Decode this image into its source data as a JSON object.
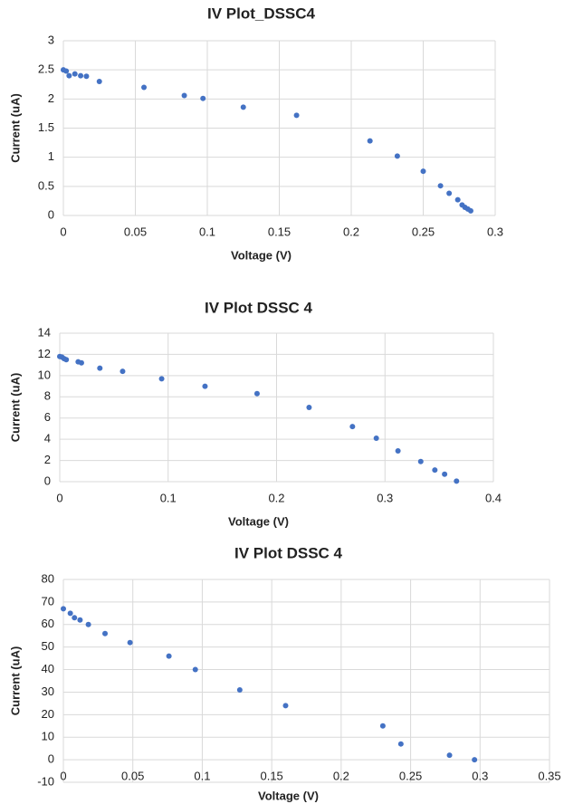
{
  "chart_data": [
    {
      "type": "scatter",
      "title": "IV Plot_DSSC4",
      "x_label": "Voltage (V)",
      "y_label": "Current (uA)",
      "series": [
        {
          "color": "#4472c4",
          "x": [
            0,
            0.002,
            0.004,
            0.008,
            0.012,
            0.016,
            0.025,
            0.056,
            0.084,
            0.097,
            0.125,
            0.162,
            0.213,
            0.232,
            0.25,
            0.262,
            0.268,
            0.274,
            0.277,
            0.279,
            0.281,
            0.283
          ],
          "values": [
            2.5,
            2.48,
            2.4,
            2.43,
            2.4,
            2.39,
            2.3,
            2.2,
            2.06,
            2.01,
            1.86,
            1.72,
            1.28,
            1.02,
            0.76,
            0.51,
            0.38,
            0.27,
            0.18,
            0.14,
            0.11,
            0.08
          ]
        }
      ],
      "xlim": [
        0,
        0.3
      ],
      "xticks": [
        0,
        0.05,
        0.1,
        0.15,
        0.2,
        0.25,
        0.3
      ],
      "ylim": [
        0,
        3
      ],
      "yticks": [
        0,
        0.5,
        1,
        1.5,
        2,
        2.5,
        3
      ],
      "grid": true
    },
    {
      "type": "scatter",
      "title": "IV Plot DSSC 4",
      "x_label": "Voltage (V)",
      "y_label": "Current (uA)",
      "series": [
        {
          "color": "#4472c4",
          "x": [
            0,
            0.002,
            0.004,
            0.006,
            0.017,
            0.02,
            0.037,
            0.058,
            0.094,
            0.134,
            0.182,
            0.23,
            0.27,
            0.292,
            0.312,
            0.333,
            0.346,
            0.355,
            0.366
          ],
          "values": [
            11.8,
            11.75,
            11.6,
            11.5,
            11.3,
            11.2,
            10.7,
            10.4,
            9.7,
            9.0,
            8.3,
            7.0,
            5.2,
            4.1,
            2.9,
            1.9,
            1.1,
            0.7,
            0.05
          ]
        }
      ],
      "xlim": [
        0,
        0.4
      ],
      "xticks": [
        0,
        0.1,
        0.2,
        0.3,
        0.4
      ],
      "ylim": [
        0,
        14
      ],
      "yticks": [
        0,
        2,
        4,
        6,
        8,
        10,
        12,
        14
      ],
      "grid": true
    },
    {
      "type": "scatter",
      "title": "IV Plot DSSC 4",
      "x_label": "Voltage (V)",
      "y_label": "Current (uA)",
      "series": [
        {
          "color": "#4472c4",
          "x": [
            0,
            0.005,
            0.008,
            0.012,
            0.018,
            0.03,
            0.048,
            0.076,
            0.095,
            0.127,
            0.16,
            0.23,
            0.243,
            0.278,
            0.296
          ],
          "values": [
            67,
            65,
            63,
            62,
            60,
            56,
            52,
            46,
            40,
            31,
            24,
            15,
            7,
            2,
            0
          ]
        }
      ],
      "xlim": [
        0,
        0.35
      ],
      "xticks": [
        0,
        0.05,
        0.1,
        0.15,
        0.2,
        0.25,
        0.3,
        0.35
      ],
      "ylim": [
        -10,
        80
      ],
      "yticks": [
        -10,
        0,
        10,
        20,
        30,
        40,
        50,
        60,
        70,
        80
      ],
      "grid": true
    }
  ]
}
